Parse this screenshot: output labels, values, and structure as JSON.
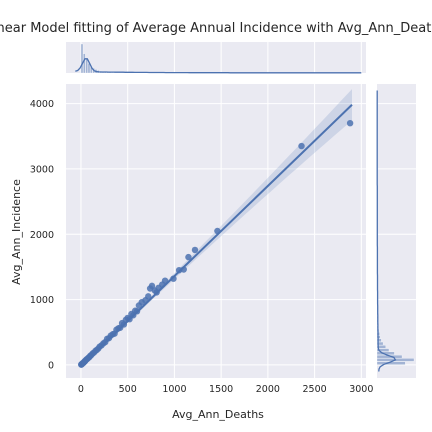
{
  "chart_data": {
    "type": "scatter",
    "title": "Linear Model fitting of Average Annual Incidence with Avg_Ann_Deaths",
    "xlabel": "Avg_Ann_Deaths",
    "ylabel": "Avg_Ann_Incidence",
    "xlim": [
      -160,
      3050
    ],
    "ylim": [
      -200,
      4300
    ],
    "xticks": [
      0,
      500,
      1000,
      1500,
      2000,
      2500,
      3000
    ],
    "yticks": [
      0,
      1000,
      2000,
      3000,
      4000
    ],
    "grid": true,
    "background": "#eaeaf2",
    "point_color": "#4c72b0",
    "line_color": "#4c72b0",
    "regression": {
      "slope": 1.38,
      "intercept": -20,
      "x_range": [
        0,
        2900
      ]
    },
    "points": [
      {
        "x": 2880,
        "y": 3700
      },
      {
        "x": 2360,
        "y": 3350
      },
      {
        "x": 1460,
        "y": 2050
      },
      {
        "x": 1220,
        "y": 1760
      },
      {
        "x": 1150,
        "y": 1650
      },
      {
        "x": 1100,
        "y": 1460
      },
      {
        "x": 1050,
        "y": 1450
      },
      {
        "x": 990,
        "y": 1320
      },
      {
        "x": 900,
        "y": 1290
      },
      {
        "x": 870,
        "y": 1230
      },
      {
        "x": 830,
        "y": 1180
      },
      {
        "x": 810,
        "y": 1110
      },
      {
        "x": 790,
        "y": 1140
      },
      {
        "x": 760,
        "y": 1210
      },
      {
        "x": 740,
        "y": 1170
      },
      {
        "x": 720,
        "y": 1050
      },
      {
        "x": 690,
        "y": 990
      },
      {
        "x": 650,
        "y": 960
      },
      {
        "x": 620,
        "y": 910
      },
      {
        "x": 600,
        "y": 820
      },
      {
        "x": 580,
        "y": 830
      },
      {
        "x": 560,
        "y": 760
      },
      {
        "x": 540,
        "y": 780
      },
      {
        "x": 520,
        "y": 700
      },
      {
        "x": 500,
        "y": 720
      },
      {
        "x": 480,
        "y": 690
      },
      {
        "x": 460,
        "y": 620
      },
      {
        "x": 440,
        "y": 640
      },
      {
        "x": 420,
        "y": 570
      },
      {
        "x": 400,
        "y": 560
      },
      {
        "x": 380,
        "y": 540
      },
      {
        "x": 360,
        "y": 480
      },
      {
        "x": 340,
        "y": 470
      },
      {
        "x": 320,
        "y": 450
      },
      {
        "x": 300,
        "y": 410
      },
      {
        "x": 280,
        "y": 400
      },
      {
        "x": 260,
        "y": 350
      },
      {
        "x": 240,
        "y": 330
      },
      {
        "x": 220,
        "y": 300
      },
      {
        "x": 200,
        "y": 280
      },
      {
        "x": 185,
        "y": 250
      },
      {
        "x": 170,
        "y": 230
      },
      {
        "x": 155,
        "y": 215
      },
      {
        "x": 140,
        "y": 190
      },
      {
        "x": 125,
        "y": 175
      },
      {
        "x": 110,
        "y": 150
      },
      {
        "x": 100,
        "y": 140
      },
      {
        "x": 90,
        "y": 120
      },
      {
        "x": 80,
        "y": 110
      },
      {
        "x": 70,
        "y": 95
      },
      {
        "x": 60,
        "y": 85
      },
      {
        "x": 50,
        "y": 70
      },
      {
        "x": 45,
        "y": 60
      },
      {
        "x": 40,
        "y": 55
      },
      {
        "x": 35,
        "y": 45
      },
      {
        "x": 30,
        "y": 40
      },
      {
        "x": 25,
        "y": 32
      },
      {
        "x": 20,
        "y": 27
      },
      {
        "x": 15,
        "y": 20
      },
      {
        "x": 10,
        "y": 14
      },
      {
        "x": 8,
        "y": 10
      },
      {
        "x": 5,
        "y": 6
      },
      {
        "x": 3,
        "y": 4
      }
    ],
    "x_marginal_histogram": {
      "bin_width": 25,
      "counts": [
        180,
        120,
        85,
        60,
        42,
        30,
        22,
        16,
        12,
        9,
        7,
        5,
        4,
        3,
        3,
        2,
        2,
        1,
        1,
        1
      ]
    },
    "y_marginal_histogram": {
      "bin_width": 50,
      "counts": [
        130,
        170,
        115,
        80,
        55,
        40,
        28,
        20,
        15,
        12,
        9,
        7,
        5,
        4,
        3,
        3,
        2,
        2,
        1,
        1
      ]
    }
  }
}
